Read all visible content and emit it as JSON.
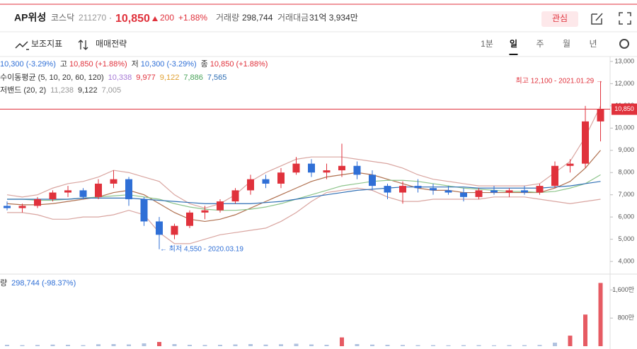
{
  "header": {
    "name": "AP위성",
    "market": "코스닥",
    "code": "211270",
    "dot": "·",
    "price": "10,850",
    "change": "200",
    "change_pct": "+1.88%",
    "volume_label": "거래량",
    "volume": "298,744",
    "amount_label": "거래대금",
    "amount": "31억 3,934만",
    "watch": "관심"
  },
  "toolbar": {
    "indicators": "보조지표",
    "strategy": "매매전략",
    "periods": [
      "1분",
      "일",
      "주",
      "월",
      "년"
    ]
  },
  "legend": {
    "ohlc": [
      "10,300 (-3.29%)",
      "고",
      "10,850 (+1.88%)",
      "저",
      "10,300 (-3.29%)",
      "종",
      "10,850 (+1.88%)"
    ],
    "ma_label": "수이동평균 (5, 10, 20, 60, 120)",
    "ma_values": [
      "10,338",
      "9,977",
      "9,122",
      "7,886",
      "7,565"
    ],
    "bb_label": "저밴드 (20, 2)",
    "bb_values": [
      "11,238",
      "9,122",
      "7,005"
    ],
    "volume_label": "량",
    "volume_value": "298,744 (-98.37%)"
  },
  "chart_data": [
    {
      "type": "candlestick",
      "up_color": "#e0323c",
      "down_color": "#2f6fd6",
      "open": [
        6500,
        6400,
        6500,
        6800,
        7100,
        7200,
        6900,
        7500,
        7700,
        6800,
        5800,
        5200,
        5600,
        6200,
        6300,
        6700,
        7200,
        7700,
        7500,
        8000,
        8400,
        8000,
        8100,
        8300,
        7900,
        7400,
        7100,
        7400,
        7300,
        7200,
        7100,
        6900,
        7200,
        7100,
        7200,
        7100,
        7400,
        8300,
        8400,
        10300
      ],
      "high": [
        6700,
        6600,
        6900,
        7200,
        7400,
        7300,
        7700,
        8100,
        7800,
        6900,
        6000,
        5700,
        6300,
        6500,
        6800,
        7300,
        7900,
        7900,
        8200,
        8700,
        8600,
        8400,
        9300,
        8500,
        8100,
        7500,
        7600,
        7700,
        7500,
        7400,
        7300,
        7300,
        7400,
        7300,
        7400,
        7500,
        8500,
        8600,
        11000,
        12100
      ],
      "low": [
        6300,
        6200,
        6400,
        6700,
        6900,
        6800,
        6800,
        7300,
        6500,
        5600,
        4550,
        5000,
        5500,
        5900,
        6200,
        6600,
        7000,
        7300,
        7300,
        7900,
        7800,
        7700,
        7800,
        7700,
        7200,
        6800,
        6600,
        7100,
        7000,
        7000,
        6700,
        6800,
        7000,
        6900,
        7000,
        7000,
        7300,
        8000,
        8200,
        9400
      ],
      "close": [
        6400,
        6500,
        6800,
        7100,
        7200,
        6900,
        7500,
        7700,
        6800,
        5800,
        5200,
        5600,
        6200,
        6300,
        6700,
        7200,
        7700,
        7500,
        8000,
        8400,
        8000,
        8100,
        8300,
        7900,
        7400,
        7100,
        7400,
        7300,
        7200,
        7100,
        6900,
        7200,
        7100,
        7200,
        7100,
        7400,
        8300,
        8400,
        10300,
        10850
      ],
      "lines": [
        {
          "color": "#d9a5a0",
          "values": [
            7000,
            6900,
            7000,
            7300,
            7500,
            7600,
            7800,
            8100,
            8000,
            7800,
            7600,
            7000,
            6600,
            6400,
            6600,
            7000,
            7600,
            8000,
            8300,
            8600,
            8700,
            8700,
            8700,
            8600,
            8500,
            8400,
            8200,
            7900,
            7700,
            7600,
            7500,
            7400,
            7400,
            7400,
            7400,
            7500,
            8000,
            8500,
            9600,
            11000
          ]
        },
        {
          "color": "#d9a5a0",
          "values": [
            6200,
            6200,
            6100,
            5900,
            5900,
            6000,
            6000,
            6100,
            6300,
            6100,
            5300,
            4800,
            4800,
            5000,
            5200,
            5300,
            5400,
            5500,
            5800,
            6200,
            6700,
            7100,
            7200,
            7300,
            7200,
            6900,
            6700,
            6700,
            6800,
            6800,
            6800,
            6800,
            6900,
            6900,
            6900,
            6800,
            6700,
            6600,
            6700,
            6800
          ]
        },
        {
          "color": "#b0704f",
          "values": [
            6600,
            6550,
            6550,
            6600,
            6700,
            6800,
            6900,
            7100,
            7200,
            7000,
            6600,
            6200,
            5900,
            5800,
            5900,
            6100,
            6400,
            6700,
            7000,
            7300,
            7600,
            7800,
            7900,
            8000,
            7900,
            7700,
            7500,
            7300,
            7200,
            7200,
            7100,
            7100,
            7100,
            7100,
            7100,
            7100,
            7300,
            7600,
            8200,
            9000
          ]
        },
        {
          "color": "#8cc48a",
          "values": [
            6800,
            6800,
            6750,
            6750,
            6800,
            6850,
            6900,
            6950,
            7000,
            6900,
            6800,
            6600,
            6450,
            6350,
            6300,
            6300,
            6350,
            6450,
            6600,
            6800,
            7000,
            7200,
            7400,
            7500,
            7600,
            7650,
            7650,
            7600,
            7500,
            7400,
            7300,
            7250,
            7200,
            7150,
            7150,
            7100,
            7150,
            7300,
            7500,
            7900
          ]
        },
        {
          "color": "#2f6fb5",
          "values": [
            6800,
            6800,
            6800,
            6800,
            6800,
            6850,
            6850,
            6850,
            6850,
            6800,
            6750,
            6700,
            6650,
            6600,
            6600,
            6600,
            6600,
            6650,
            6700,
            6800,
            6900,
            7000,
            7100,
            7200,
            7250,
            7300,
            7350,
            7350,
            7350,
            7350,
            7350,
            7300,
            7300,
            7300,
            7300,
            7300,
            7350,
            7400,
            7500,
            7600
          ]
        }
      ],
      "ylim": [
        3430,
        13220
      ],
      "yticks": [
        {
          "value": 4000,
          "label": "4,000"
        },
        {
          "value": 5000,
          "label": "5,000"
        },
        {
          "value": 6000,
          "label": "6,000"
        },
        {
          "value": 7000,
          "label": "7,000"
        },
        {
          "value": 8000,
          "label": "8,000"
        },
        {
          "value": 9000,
          "label": "9,000"
        },
        {
          "value": 10000,
          "label": "10,000"
        },
        {
          "value": 11000,
          "label": "11,000"
        },
        {
          "value": 12000,
          "label": "12,000"
        },
        {
          "value": 13000,
          "label": "13,000"
        }
      ],
      "current": {
        "value": 10850,
        "label": "10,850"
      },
      "annotations": [
        "최고 12,100 - 2021.01.29 →",
        "← 최저 4,550 - 2020.03.19"
      ]
    },
    {
      "type": "bar",
      "color": "#9db4d8",
      "high_color": "#e0323c",
      "values": [
        40,
        30,
        35,
        45,
        40,
        30,
        55,
        60,
        50,
        80,
        120,
        60,
        40,
        35,
        40,
        50,
        60,
        45,
        55,
        70,
        50,
        40,
        250,
        60,
        45,
        40,
        35,
        30,
        30,
        25,
        30,
        30,
        25,
        30,
        30,
        35,
        100,
        300,
        900,
        1800
      ],
      "ylim": [
        0,
        1850
      ],
      "yticks": [
        {
          "value": 800,
          "label": "800만"
        },
        {
          "value": 1600,
          "label": "1,600만"
        }
      ]
    }
  ]
}
